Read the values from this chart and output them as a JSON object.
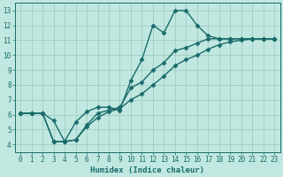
{
  "line1_x": [
    0,
    1,
    2,
    3,
    4,
    5,
    6,
    7,
    8,
    9,
    10,
    11,
    12,
    13,
    14,
    15,
    16,
    17,
    18,
    19,
    20,
    21,
    22,
    23
  ],
  "line1_y": [
    6.1,
    6.1,
    6.1,
    4.2,
    4.2,
    5.5,
    6.2,
    6.5,
    6.5,
    6.3,
    8.3,
    9.7,
    12.0,
    11.5,
    13.0,
    13.0,
    12.0,
    11.3,
    11.1,
    11.1,
    11.1,
    11.1,
    11.1,
    11.1
  ],
  "line2_x": [
    0,
    1,
    2,
    3,
    4,
    5,
    6,
    7,
    8,
    9,
    10,
    11,
    12,
    13,
    14,
    15,
    16,
    17,
    18,
    19,
    20,
    21,
    22,
    23
  ],
  "line2_y": [
    6.1,
    6.1,
    6.1,
    5.6,
    4.2,
    4.3,
    5.3,
    6.1,
    6.3,
    6.5,
    7.8,
    8.2,
    9.0,
    9.5,
    10.3,
    10.5,
    10.8,
    11.1,
    11.1,
    11.1,
    11.1,
    11.1,
    11.1,
    11.1
  ],
  "line3_x": [
    0,
    1,
    2,
    3,
    4,
    5,
    6,
    7,
    8,
    9,
    10,
    11,
    12,
    13,
    14,
    15,
    16,
    17,
    18,
    19,
    20,
    21,
    22,
    23
  ],
  "line3_y": [
    6.1,
    6.1,
    6.1,
    4.2,
    4.2,
    4.3,
    5.2,
    5.8,
    6.2,
    6.4,
    7.0,
    7.4,
    8.0,
    8.6,
    9.3,
    9.7,
    10.0,
    10.4,
    10.7,
    10.9,
    11.0,
    11.1,
    11.1,
    11.1
  ],
  "line_color": "#1a6b6b",
  "bg_color": "#c0e8e0",
  "grid_color": "#a0ccc4",
  "xlabel": "Humidex (Indice chaleur)",
  "xlim": [
    -0.5,
    23.5
  ],
  "ylim": [
    3.5,
    13.5
  ],
  "yticks": [
    4,
    5,
    6,
    7,
    8,
    9,
    10,
    11,
    12,
    13
  ],
  "xticks": [
    0,
    1,
    2,
    3,
    4,
    5,
    6,
    7,
    8,
    9,
    10,
    11,
    12,
    13,
    14,
    15,
    16,
    17,
    18,
    19,
    20,
    21,
    22,
    23
  ],
  "marker": "D",
  "markersize": 2.5,
  "linewidth": 1.0
}
